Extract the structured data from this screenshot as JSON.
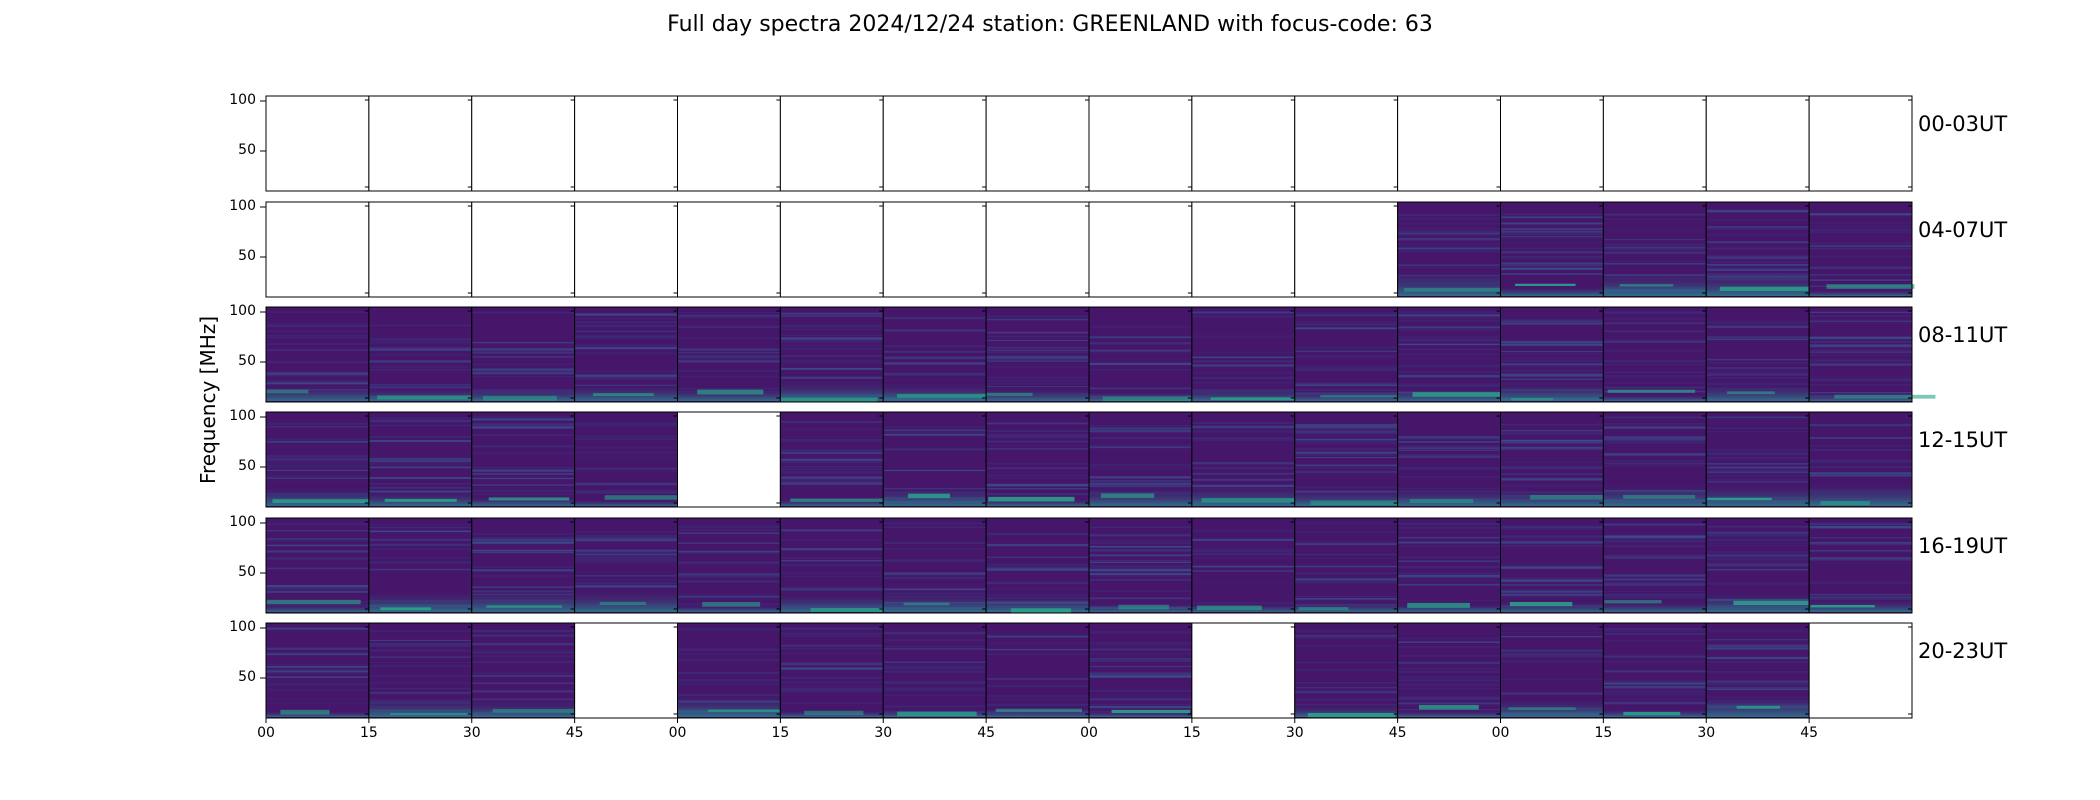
{
  "chart_data": {
    "type": "heatmap",
    "title": "Full day spectra 2024/12/24 station: GREENLAND with focus-code: 63",
    "ylabel": "Frequency [MHz]",
    "yticks": [
      "100",
      "50"
    ],
    "ylim": [
      10,
      105
    ],
    "xticks": [
      "00",
      "15",
      "30",
      "45",
      "00",
      "15",
      "30",
      "45",
      "00",
      "15",
      "30",
      "45",
      "00",
      "15",
      "30",
      "45"
    ],
    "columns_per_row": 16,
    "rows": [
      {
        "label": "00-03UT",
        "has_data": [
          0,
          0,
          0,
          0,
          0,
          0,
          0,
          0,
          0,
          0,
          0,
          0,
          0,
          0,
          0,
          0
        ]
      },
      {
        "label": "04-07UT",
        "has_data": [
          0,
          0,
          0,
          0,
          0,
          0,
          0,
          0,
          0,
          0,
          0,
          1,
          1,
          1,
          1,
          1
        ]
      },
      {
        "label": "08-11UT",
        "has_data": [
          1,
          1,
          1,
          1,
          1,
          1,
          1,
          1,
          1,
          1,
          1,
          1,
          1,
          1,
          1,
          1
        ]
      },
      {
        "label": "12-15UT",
        "has_data": [
          1,
          1,
          1,
          1,
          0,
          1,
          1,
          1,
          1,
          1,
          1,
          1,
          1,
          1,
          1,
          1
        ]
      },
      {
        "label": "16-19UT",
        "has_data": [
          1,
          1,
          1,
          1,
          1,
          1,
          1,
          1,
          1,
          1,
          1,
          1,
          1,
          1,
          1,
          1
        ]
      },
      {
        "label": "20-23UT",
        "has_data": [
          1,
          1,
          1,
          0,
          1,
          1,
          1,
          1,
          1,
          0,
          1,
          1,
          1,
          1,
          1,
          0
        ]
      }
    ],
    "colormap": {
      "background": "#45166a",
      "mid": "#3b4f8c",
      "high": "#29a38a"
    }
  }
}
